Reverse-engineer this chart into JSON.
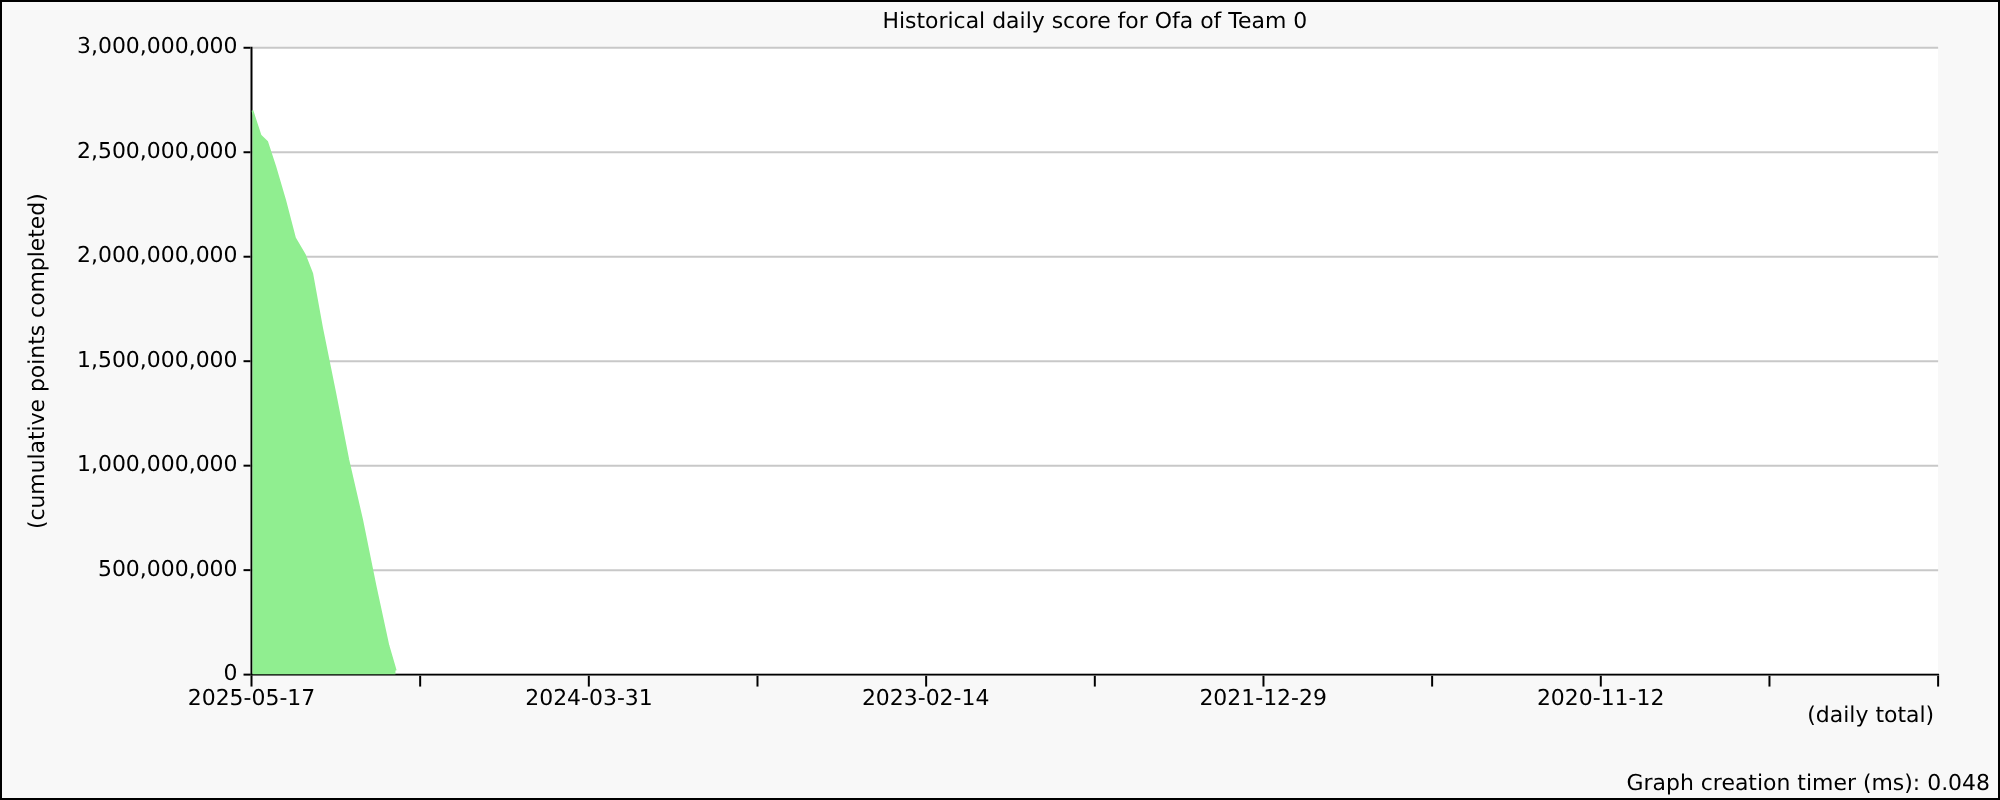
{
  "chart_data": {
    "type": "area",
    "title": "Historical daily score for Ofa of Team 0",
    "ylabel": "(cumulative points completed)",
    "annotations": [
      "(daily total)",
      "Graph creation timer (ms): 0.048"
    ],
    "x": [
      "2025-05-16",
      "2025-05-06",
      "2025-04-28",
      "2025-04-18",
      "2025-04-06",
      "2025-03-25",
      "2025-03-13",
      "2025-03-04",
      "2025-02-20",
      "2025-02-04",
      "2025-01-19",
      "2025-01-02",
      "2024-12-17",
      "2024-12-01",
      "2024-11-22"
    ],
    "series": [
      {
        "color": "#90ee90",
        "values": [
          2700000000,
          2580000000,
          2550000000,
          2430000000,
          2270000000,
          2090000000,
          2010000000,
          1920000000,
          1660000000,
          1350000000,
          1030000000,
          740000000,
          430000000,
          140000000,
          20000000
        ]
      }
    ],
    "xlim": [
      "2025-05-17",
      "2019-09-27"
    ],
    "xticks": [
      {
        "value": "2025-05-17",
        "label": "2025-05-17"
      },
      {
        "value": "2024-10-23",
        "label": null
      },
      {
        "value": "2024-03-31",
        "label": "2024-03-31"
      },
      {
        "value": "2023-09-07",
        "label": null
      },
      {
        "value": "2023-02-14",
        "label": "2023-02-14"
      },
      {
        "value": "2022-07-23",
        "label": null
      },
      {
        "value": "2021-12-29",
        "label": "2021-12-29"
      },
      {
        "value": "2021-06-06",
        "label": null
      },
      {
        "value": "2020-11-12",
        "label": "2020-11-12"
      },
      {
        "value": "2020-04-20",
        "label": null
      },
      {
        "value": "2019-09-27",
        "label": null
      }
    ],
    "ylim": [
      0,
      3000000000
    ],
    "yticks": [
      0,
      {
        "value": 500000000,
        "label": "500,000,000"
      },
      {
        "value": 1000000000,
        "label": "1,000,000,000"
      },
      {
        "value": 1500000000,
        "label": "1,500,000,000"
      },
      {
        "value": 2000000000,
        "label": "2,000,000,000"
      },
      {
        "value": 2500000000,
        "label": "2,500,000,000"
      },
      {
        "value": 3000000000,
        "label": "3,000,000,000"
      }
    ],
    "grid": "y",
    "legend": false
  }
}
